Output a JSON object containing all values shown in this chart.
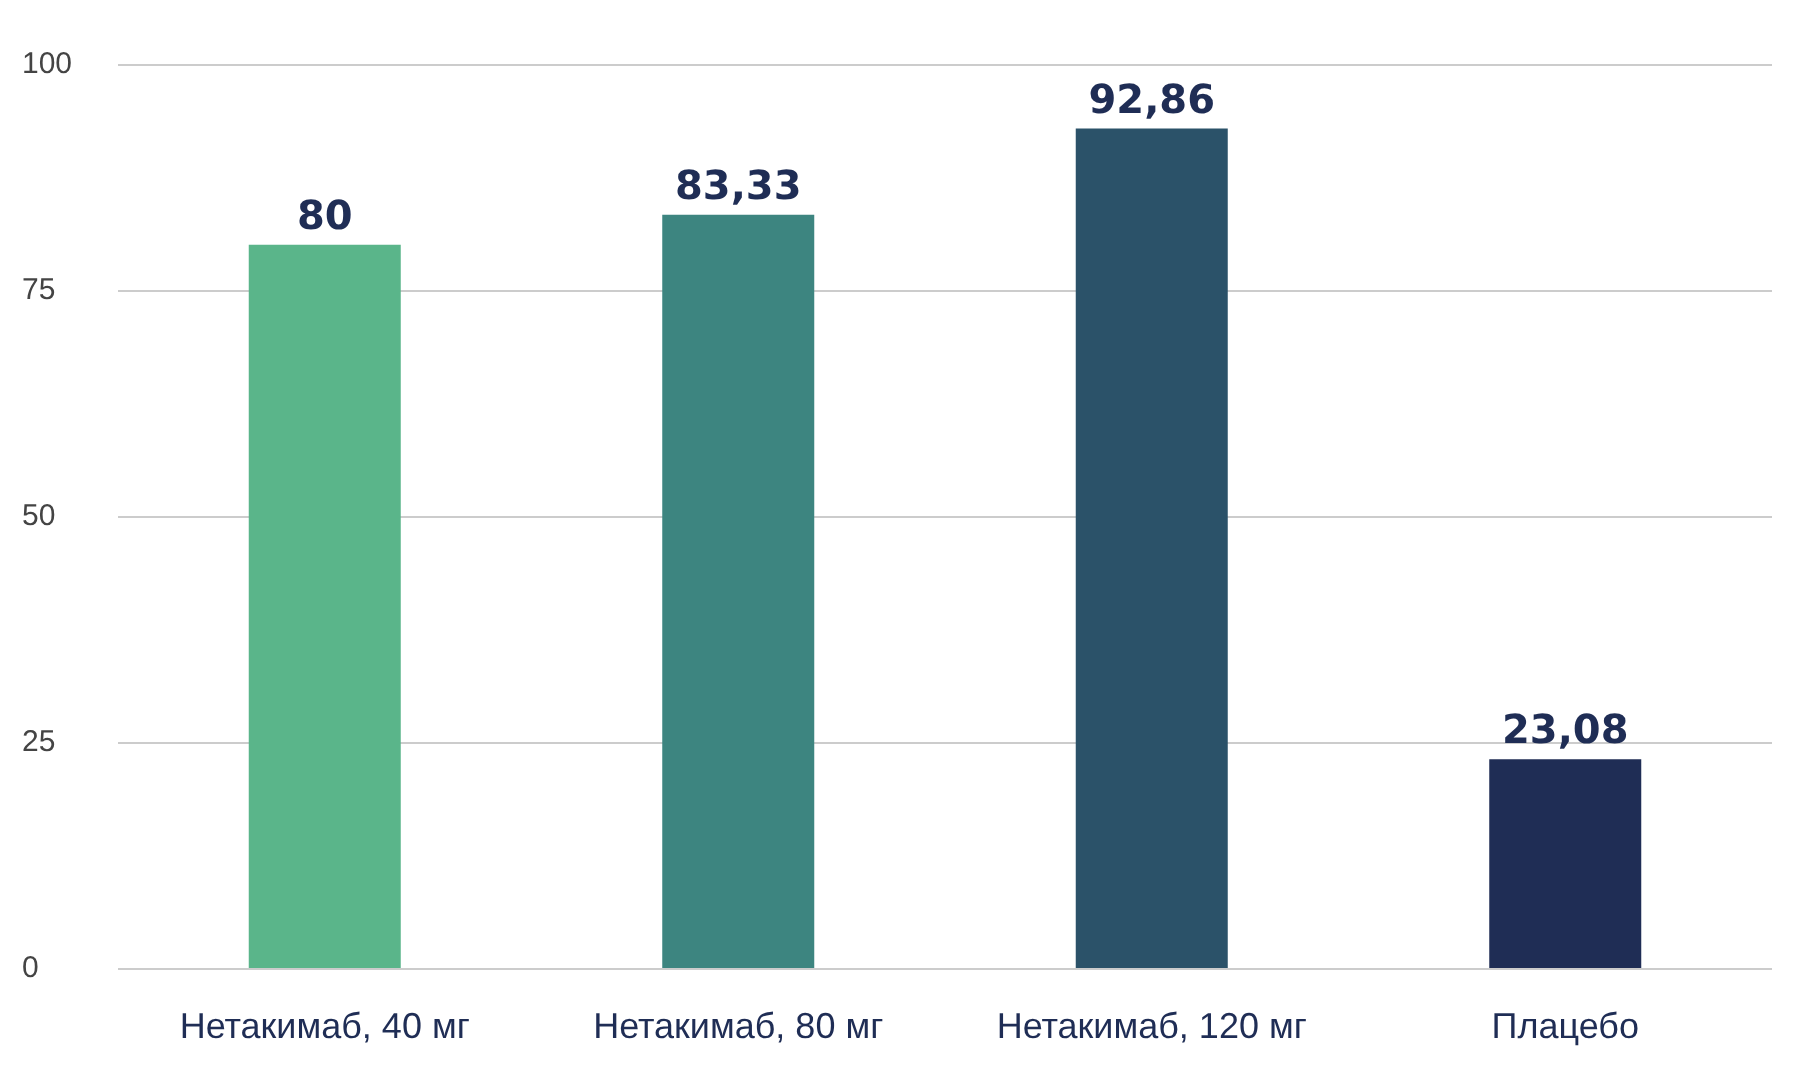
{
  "chart_data": {
    "type": "bar",
    "categories": [
      "Нетакимаб, 40 мг",
      "Нетакимаб, 80 мг",
      "Нетакимаб, 120 мг",
      "Плацебо"
    ],
    "values": [
      80,
      83.33,
      92.86,
      23.08
    ],
    "colors": [
      "#5ab58a",
      "#3d8580",
      "#2b5269",
      "#1f2d55"
    ],
    "value_labels": [
      "80",
      "83,33",
      "92,86",
      "23,08"
    ],
    "ylim": [
      0,
      100
    ],
    "yticks": [
      0,
      25,
      50,
      75,
      100
    ],
    "grid": "y"
  }
}
